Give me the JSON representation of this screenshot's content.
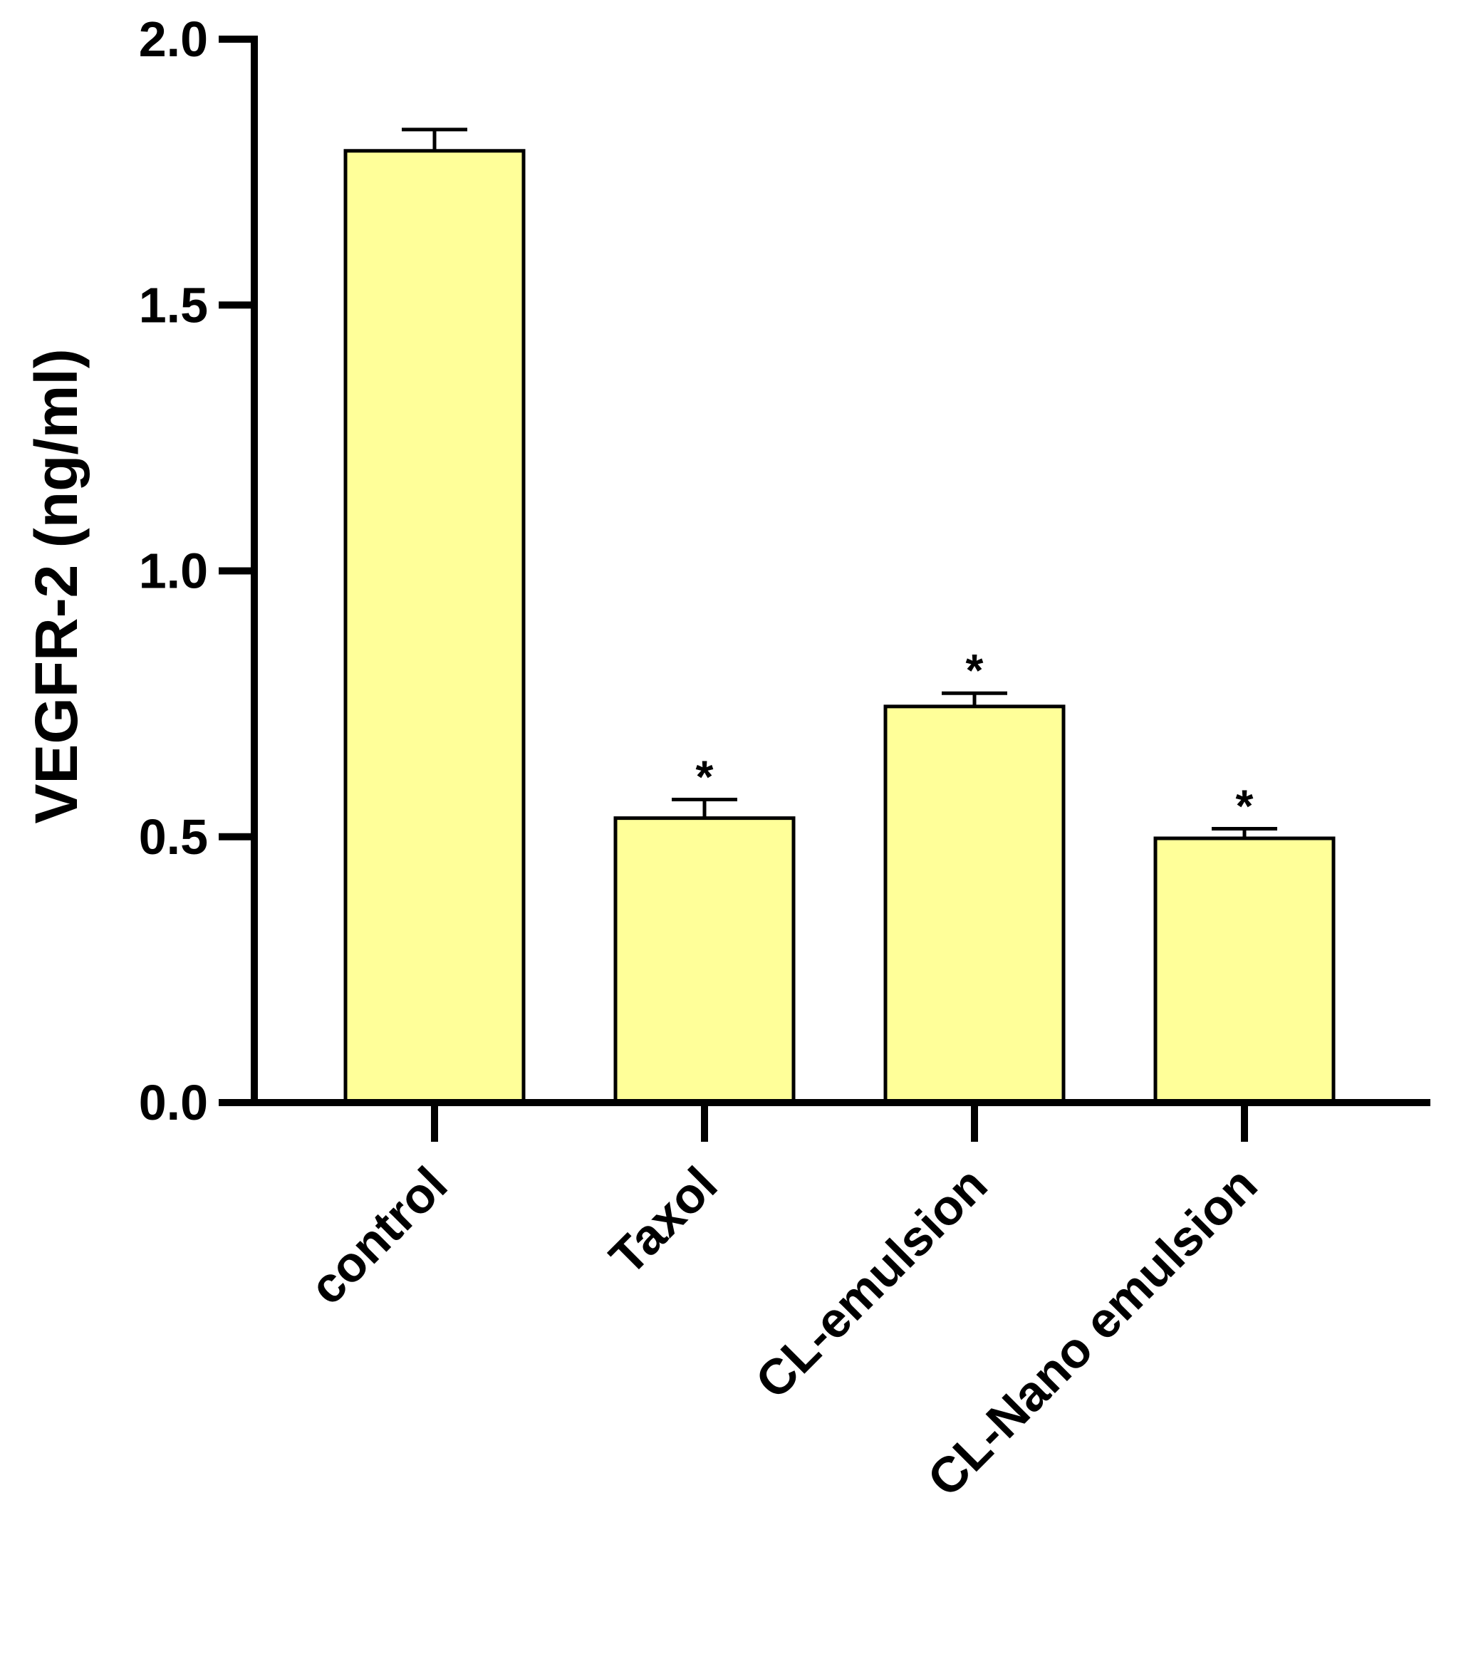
{
  "chart_data": {
    "type": "bar",
    "categories": [
      "control",
      "Taxol",
      "CL-emulsion",
      "CL-Nano emulsion"
    ],
    "values": [
      1.79,
      0.535,
      0.745,
      0.497
    ],
    "error_upper": [
      1.83,
      0.57,
      0.77,
      0.515
    ],
    "significance": [
      "",
      "*",
      "*",
      "*"
    ],
    "ylabel": "VEGFR-2 (ng/ml)",
    "xlabel": "",
    "ylim": [
      0,
      2.0
    ],
    "yticks": [
      0.0,
      0.5,
      1.0,
      1.5,
      2.0
    ],
    "ytick_labels": [
      "0.0",
      "0.5",
      "1.0",
      "1.5",
      "2.0"
    ],
    "bar_color": "#ffff99",
    "edge_color": "#000000",
    "grid": false,
    "legend": "none"
  }
}
